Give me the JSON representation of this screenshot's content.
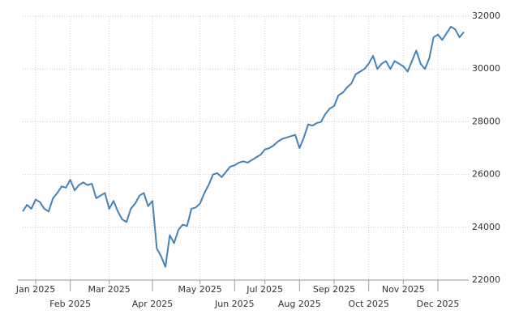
{
  "chart_data": {
    "type": "line",
    "color": "#4682b4",
    "grid": true,
    "categories": [
      null,
      null,
      null,
      "Jan 2025",
      null,
      null,
      null,
      null,
      null,
      null,
      null,
      "Feb 2025",
      null,
      null,
      null,
      null,
      null,
      null,
      null,
      null,
      "Mar 2025",
      null,
      null,
      null,
      null,
      null,
      null,
      null,
      null,
      null,
      "Apr 2025",
      null,
      null,
      null,
      null,
      null,
      null,
      null,
      null,
      null,
      null,
      "May 2025",
      null,
      null,
      null,
      null,
      null,
      null,
      null,
      "Jun 2025",
      null,
      null,
      null,
      null,
      null,
      null,
      "Jul 2025",
      null,
      null,
      null,
      null,
      null,
      null,
      null,
      "Aug 2025",
      null,
      null,
      null,
      null,
      null,
      null,
      null,
      "Sep 2025",
      null,
      null,
      null,
      null,
      null,
      null,
      null,
      "Oct 2025",
      null,
      null,
      null,
      null,
      null,
      null,
      null,
      "Nov 2025",
      null,
      null,
      null,
      null,
      null,
      null,
      null,
      "Dec 2025",
      null,
      null,
      null,
      null,
      null,
      null
    ],
    "values": [
      24600,
      24850,
      24700,
      25050,
      24950,
      24700,
      24600,
      25100,
      25300,
      25550,
      25500,
      25800,
      25400,
      25600,
      25700,
      25600,
      25650,
      25100,
      25200,
      25300,
      24700,
      25000,
      24600,
      24300,
      24200,
      24700,
      24900,
      25200,
      25300,
      24800,
      25000,
      23200,
      22900,
      22500,
      23700,
      23400,
      23900,
      24100,
      24050,
      24700,
      24750,
      24900,
      25300,
      25600,
      26000,
      26050,
      25900,
      26100,
      26300,
      26350,
      26450,
      26500,
      26450,
      26550,
      26650,
      26750,
      26950,
      27000,
      27100,
      27250,
      27350,
      27400,
      27450,
      27500,
      27000,
      27400,
      27900,
      27850,
      27950,
      28000,
      28300,
      28500,
      28600,
      29000,
      29100,
      29300,
      29450,
      29800,
      29900,
      30000,
      30200,
      30500,
      30000,
      30200,
      30300,
      30000,
      30300,
      30200,
      30100,
      29900,
      30300,
      30700,
      30200,
      30000,
      30400,
      31200,
      31300,
      31100,
      31350,
      31600,
      31500,
      31200,
      31400
    ],
    "ylim": [
      22000,
      32000
    ],
    "yticks": [
      22000,
      24000,
      26000,
      28000,
      30000,
      32000
    ]
  }
}
